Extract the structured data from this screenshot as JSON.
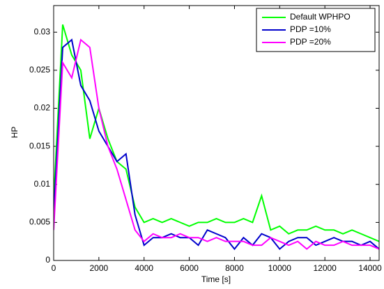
{
  "chart_data": {
    "type": "line",
    "xlabel": "Time [s]",
    "ylabel": "HP",
    "x": [
      0,
      400,
      800,
      1200,
      1600,
      2000,
      2400,
      2800,
      3200,
      3600,
      4000,
      4400,
      4800,
      5200,
      5600,
      6000,
      6400,
      6800,
      7200,
      7600,
      8000,
      8400,
      8800,
      9200,
      9600,
      10000,
      10400,
      10800,
      11200,
      11600,
      12000,
      12400,
      12800,
      13200,
      13600,
      14000,
      14400
    ],
    "series": [
      {
        "name": "Default WPHPO",
        "color": "#00ff00",
        "values": [
          0.008,
          0.031,
          0.027,
          0.025,
          0.016,
          0.02,
          0.016,
          0.013,
          0.012,
          0.007,
          0.005,
          0.0055,
          0.005,
          0.0055,
          0.005,
          0.0045,
          0.005,
          0.005,
          0.0055,
          0.005,
          0.005,
          0.0055,
          0.005,
          0.0085,
          0.004,
          0.0045,
          0.0035,
          0.004,
          0.004,
          0.0045,
          0.004,
          0.004,
          0.0035,
          0.004,
          0.0035,
          0.003,
          0.0025
        ]
      },
      {
        "name": "PDP =10%",
        "color": "#0000cc",
        "values": [
          0.006,
          0.028,
          0.029,
          0.023,
          0.021,
          0.017,
          0.015,
          0.013,
          0.014,
          0.006,
          0.002,
          0.003,
          0.003,
          0.0035,
          0.003,
          0.003,
          0.002,
          0.004,
          0.0035,
          0.003,
          0.0015,
          0.003,
          0.002,
          0.0035,
          0.003,
          0.0015,
          0.0025,
          0.003,
          0.003,
          0.002,
          0.0025,
          0.003,
          0.0025,
          0.0025,
          0.002,
          0.0025,
          0.0015
        ]
      },
      {
        "name": "PDP =20%",
        "color": "#ff00ff",
        "values": [
          0.004,
          0.026,
          0.024,
          0.029,
          0.028,
          0.02,
          0.015,
          0.012,
          0.008,
          0.004,
          0.0025,
          0.0035,
          0.003,
          0.003,
          0.0035,
          0.003,
          0.003,
          0.0025,
          0.003,
          0.0025,
          0.0025,
          0.0025,
          0.002,
          0.002,
          0.003,
          0.0025,
          0.002,
          0.0025,
          0.0015,
          0.0025,
          0.002,
          0.002,
          0.0025,
          0.002,
          0.002,
          0.002,
          0.0015
        ]
      }
    ],
    "xlim": [
      0,
      14400
    ],
    "ylim": [
      0,
      0.0335
    ],
    "xticks": [
      0,
      2000,
      4000,
      6000,
      8000,
      10000,
      12000,
      14000
    ],
    "yticks": [
      0,
      0.005,
      0.01,
      0.015,
      0.02,
      0.025,
      0.03
    ],
    "grid": false,
    "legend": "top-right"
  }
}
